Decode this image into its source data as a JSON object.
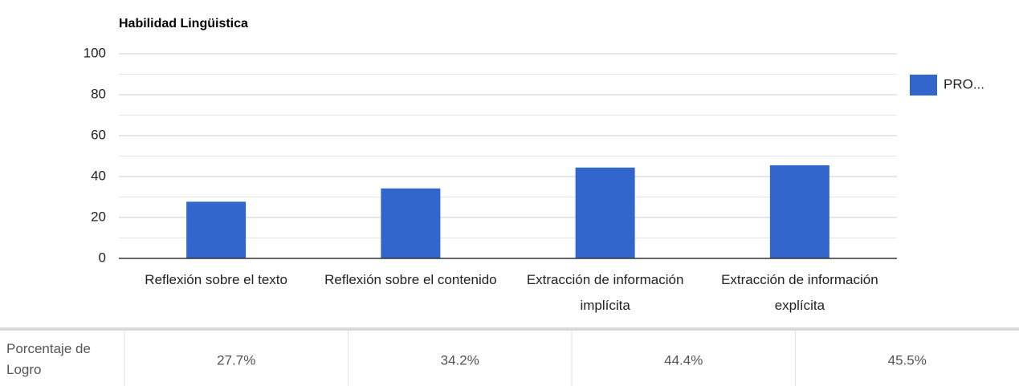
{
  "chart_data": {
    "type": "bar",
    "title": "Habilidad Lingüistica",
    "categories": [
      "Reflexión sobre el texto",
      "Reflexión sobre el contenido",
      "Extracción de información implícita",
      "Extracción de información explícita"
    ],
    "series": [
      {
        "name": "PRO...",
        "color": "#3366cc",
        "values": [
          27.7,
          34.2,
          44.4,
          45.5
        ],
        "value_labels": [
          "27.7%",
          "34.2%",
          "44.4%",
          "45.5%"
        ]
      }
    ],
    "ylim": [
      0,
      100
    ],
    "yticks": [
      0,
      20,
      40,
      60,
      80,
      100
    ],
    "minor_yticks": [
      10,
      30,
      50,
      70,
      90
    ],
    "grid": true,
    "legend": "right",
    "table": {
      "row_label": "Porcentaje de Logro"
    }
  }
}
